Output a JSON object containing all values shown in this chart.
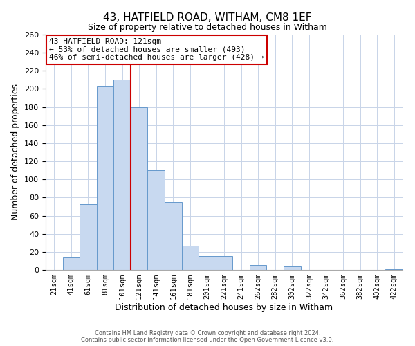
{
  "title": "43, HATFIELD ROAD, WITHAM, CM8 1EF",
  "subtitle": "Size of property relative to detached houses in Witham",
  "xlabel": "Distribution of detached houses by size in Witham",
  "ylabel": "Number of detached properties",
  "bar_labels": [
    "21sqm",
    "41sqm",
    "61sqm",
    "81sqm",
    "101sqm",
    "121sqm",
    "141sqm",
    "161sqm",
    "181sqm",
    "201sqm",
    "221sqm",
    "241sqm",
    "262sqm",
    "282sqm",
    "302sqm",
    "322sqm",
    "342sqm",
    "362sqm",
    "382sqm",
    "402sqm",
    "422sqm"
  ],
  "bar_values": [
    0,
    14,
    73,
    203,
    210,
    180,
    110,
    75,
    27,
    15,
    15,
    0,
    5,
    0,
    4,
    0,
    0,
    0,
    0,
    0,
    1
  ],
  "bar_color": "#c8d9f0",
  "bar_edge_color": "#6699cc",
  "vline_x": 4.5,
  "vline_color": "#cc0000",
  "annotation_title": "43 HATFIELD ROAD: 121sqm",
  "annotation_line1": "← 53% of detached houses are smaller (493)",
  "annotation_line2": "46% of semi-detached houses are larger (428) →",
  "annotation_box_edge": "#cc0000",
  "ylim": [
    0,
    260
  ],
  "yticks": [
    0,
    20,
    40,
    60,
    80,
    100,
    120,
    140,
    160,
    180,
    200,
    220,
    240,
    260
  ],
  "footer1": "Contains HM Land Registry data © Crown copyright and database right 2024.",
  "footer2": "Contains public sector information licensed under the Open Government Licence v3.0."
}
